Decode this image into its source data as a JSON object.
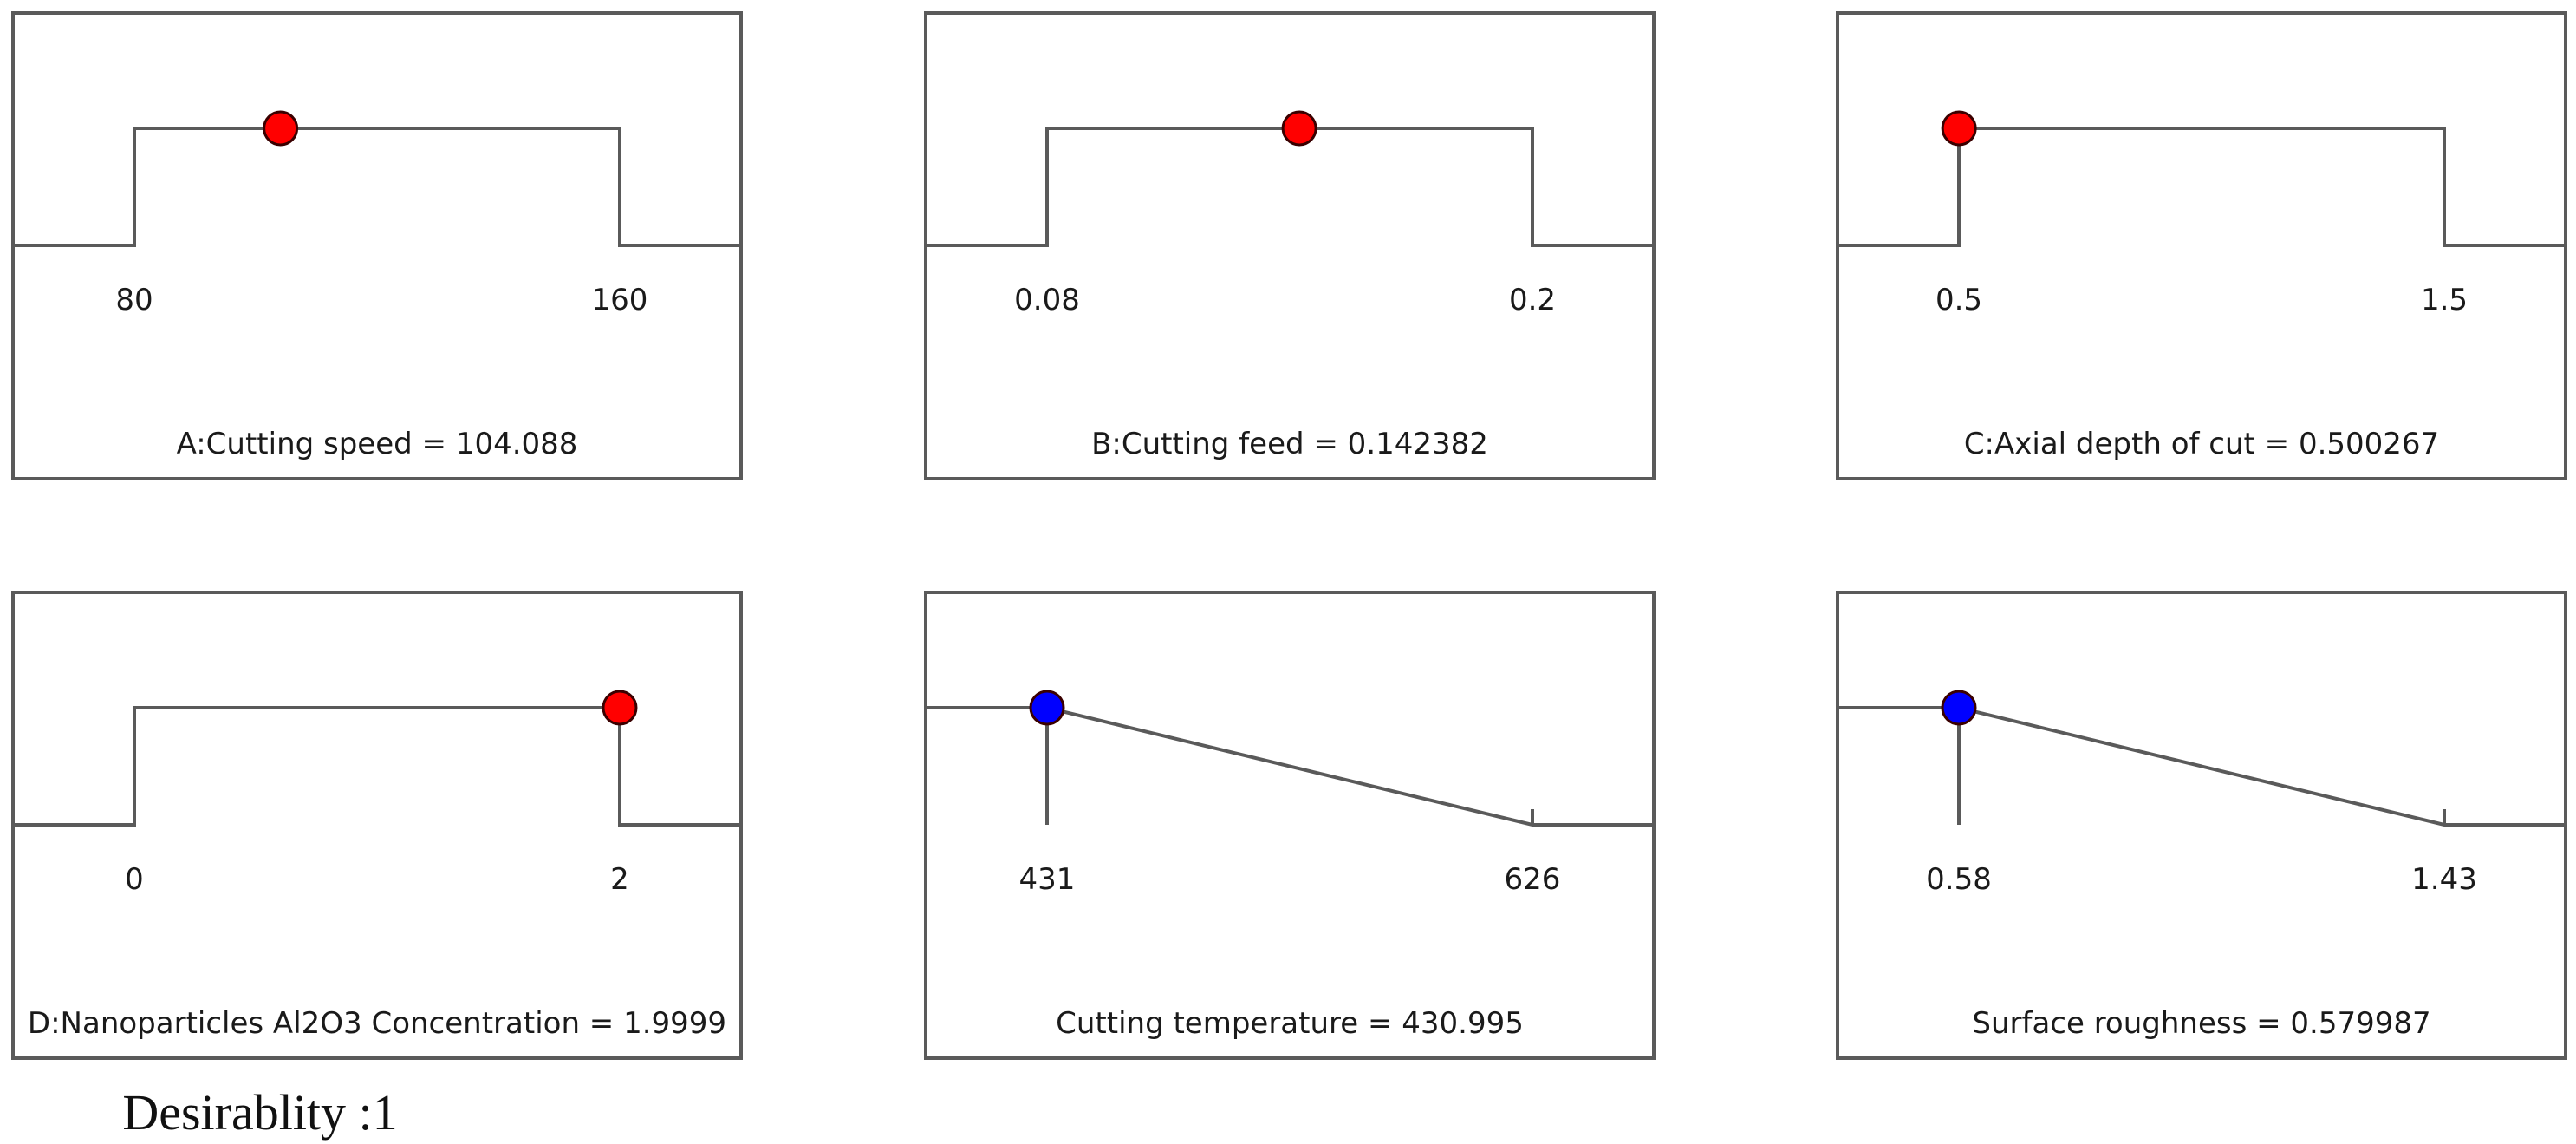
{
  "chart_data": [
    {
      "type": "line",
      "kind": "factor",
      "low_label": "80",
      "high_label": "160",
      "value_text": "A:Cutting speed = 104.088",
      "range": [
        80,
        160
      ],
      "current": 104.088,
      "goal": "in range",
      "point_color": "#ff0000"
    },
    {
      "type": "line",
      "kind": "factor",
      "low_label": "0.08",
      "high_label": "0.2",
      "value_text": "B:Cutting feed = 0.142382",
      "range": [
        0.08,
        0.2
      ],
      "current": 0.142382,
      "goal": "in range",
      "point_color": "#ff0000"
    },
    {
      "type": "line",
      "kind": "factor",
      "low_label": "0.5",
      "high_label": "1.5",
      "value_text": "C:Axial depth of cut = 0.500267",
      "range": [
        0.5,
        1.5
      ],
      "current": 0.500267,
      "goal": "in range",
      "point_color": "#ff0000"
    },
    {
      "type": "line",
      "kind": "factor",
      "low_label": "0",
      "high_label": "2",
      "value_text": "D:Nanoparticles Al2O3 Concentration  = 1.9999",
      "range": [
        0,
        2
      ],
      "current": 1.9999,
      "goal": "in range",
      "point_color": "#ff0000"
    },
    {
      "type": "line",
      "kind": "response",
      "low_label": "431",
      "high_label": "626",
      "value_text": "Cutting temperature = 430.995",
      "range": [
        431,
        626
      ],
      "current": 430.995,
      "goal": "minimize",
      "point_color": "#0000ff"
    },
    {
      "type": "line",
      "kind": "response",
      "low_label": "0.58",
      "high_label": "1.43",
      "value_text": "Surface roughness = 0.579987",
      "range": [
        0.58,
        1.43
      ],
      "current": 0.579987,
      "goal": "minimize",
      "point_color": "#0000ff"
    }
  ],
  "desirability_text": "Desirablity :1",
  "colors": {
    "frame": "#5a5a5a",
    "factor_point": "#ff0000",
    "response_point": "#0000ff"
  }
}
